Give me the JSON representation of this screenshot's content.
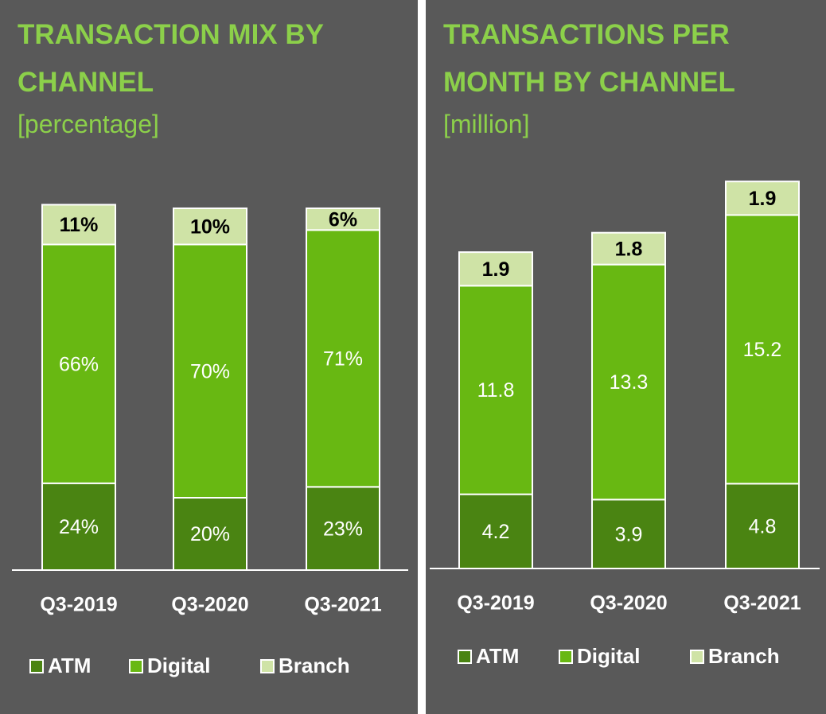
{
  "chart_data": [
    {
      "type": "bar",
      "stacked": true,
      "title": "TRANSACTION MIX BY CHANNEL",
      "subtitle": "[percentage]",
      "categories": [
        "Q3-2019",
        "Q3-2020",
        "Q3-2021"
      ],
      "ylim": [
        0,
        100
      ],
      "series": [
        {
          "name": "ATM",
          "color": "#4a8412",
          "values": [
            24,
            20,
            23
          ],
          "value_labels": [
            "24%",
            "20%",
            "23%"
          ]
        },
        {
          "name": "Digital",
          "color": "#68b812",
          "values": [
            66,
            70,
            71
          ],
          "value_labels": [
            "66%",
            "70%",
            "71%"
          ]
        },
        {
          "name": "Branch",
          "color": "#cfe3a6",
          "values": [
            11,
            10,
            6
          ],
          "value_labels": [
            "11%",
            "10%",
            "6%"
          ]
        }
      ]
    },
    {
      "type": "bar",
      "stacked": true,
      "title": "TRANSACTIONS PER MONTH BY CHANNEL",
      "subtitle": "[million]",
      "categories": [
        "Q3-2019",
        "Q3-2020",
        "Q3-2021"
      ],
      "ylim": [
        0,
        22
      ],
      "series": [
        {
          "name": "ATM",
          "color": "#4a8412",
          "values": [
            4.2,
            3.9,
            4.8
          ]
        },
        {
          "name": "Digital",
          "color": "#68b812",
          "values": [
            11.8,
            13.3,
            15.2
          ]
        },
        {
          "name": "Branch",
          "color": "#cfe3a6",
          "values": [
            1.9,
            1.8,
            1.9
          ]
        }
      ]
    }
  ]
}
